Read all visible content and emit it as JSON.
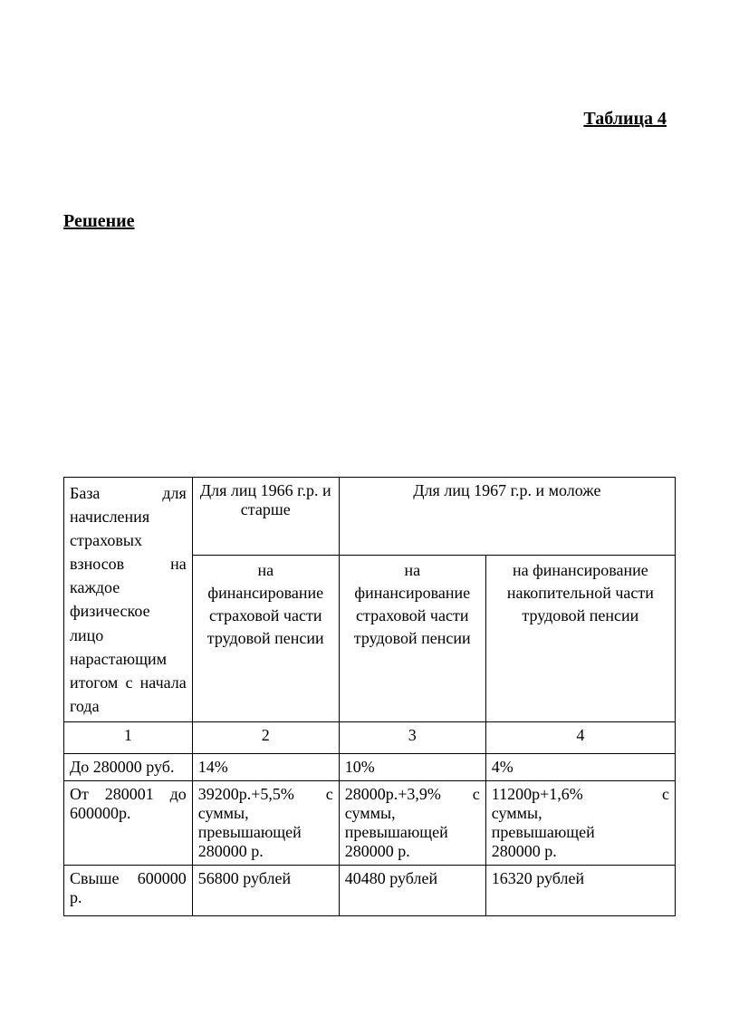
{
  "title": "Таблица 4",
  "subtitle": "Решение",
  "table": {
    "header": {
      "col1_lines": [
        "База для",
        "начисления",
        "страховых",
        "взносов на",
        "каждое",
        "физическое",
        "лицо",
        "нарастающим",
        "итогом с начала"
      ],
      "col1_last": "года",
      "group1": "Для лиц 1966 г.р. и старше",
      "group2": "Для лиц 1967 г.р. и моложе",
      "sub2": "на финансирование страховой части трудовой пенсии",
      "sub3": "на финансирование страховой части трудовой пенсии",
      "sub4": "на финансирование накопительной части трудовой пенсии"
    },
    "numrow": [
      "1",
      "2",
      "3",
      "4"
    ],
    "rows": [
      {
        "c1": "До 280000 руб.",
        "c2": "14%",
        "c3": "10%",
        "c4": "4%"
      },
      {
        "c1_j": [
          "От 280001 до"
        ],
        "c1_last": "600000р.",
        "c2_j": [
          "39200р.+5,5% с",
          "суммы,",
          "превышающей"
        ],
        "c2_last": "280000  р.",
        "c3_j": [
          "28000р.+3,9% с",
          "суммы,",
          "превышающей"
        ],
        "c3_last": "280000  р.",
        "c4_j": [
          "11200р+1,6% с",
          "суммы,",
          "превышающей"
        ],
        "c4_last": "280000  р."
      },
      {
        "c1_j": [
          "Свыше 600000"
        ],
        "c1_last": "р.",
        "c2": "56800 рублей",
        "c3": "40480 рублей",
        "c4": "16320 рублей"
      }
    ]
  },
  "colwidths": [
    "21%",
    "24%",
    "24%",
    "31%"
  ]
}
